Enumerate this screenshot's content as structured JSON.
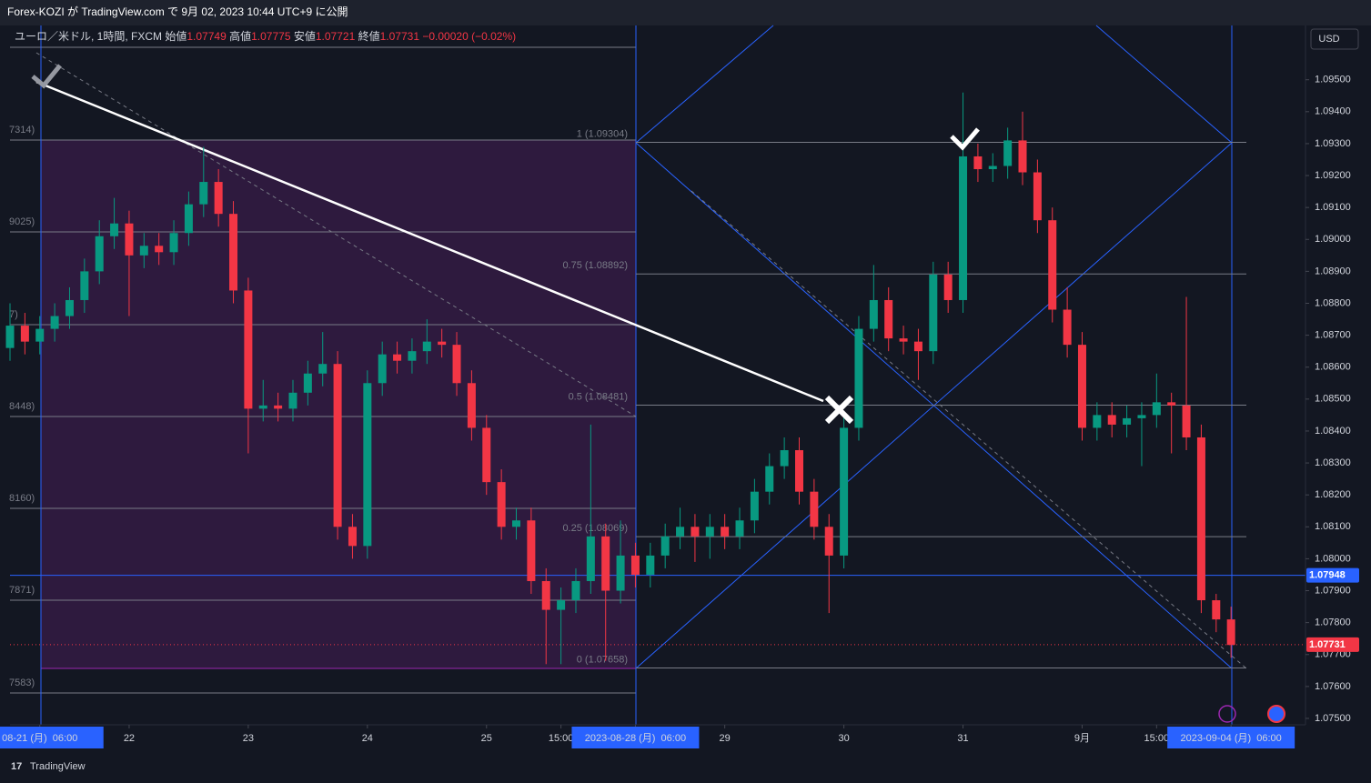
{
  "header": {
    "title": "Forex-KOZI が TradingView.com で 9月 02, 2023 10:44 UTC+9 に公開"
  },
  "legend": {
    "symbol": "ユーロ／米ドル, 1時間, FXCM",
    "items": [
      {
        "key": "始値",
        "value": "1.07749"
      },
      {
        "key": "高値",
        "value": "1.07775"
      },
      {
        "key": "安値",
        "value": "1.07721"
      },
      {
        "key": "終値",
        "value": "1.07731"
      }
    ],
    "change": "−0.00020 (−0.02%)"
  },
  "currency_button": "USD",
  "footer": {
    "brand": "TradingView"
  },
  "left_fib_labels": [
    "7314)",
    "9025)",
    "7)",
    "8448)",
    "8160)",
    "7871)",
    "7583)"
  ],
  "chart_data": {
    "type": "candlestick",
    "up_color": "#089981",
    "down_color": "#f23645",
    "xlim": [
      0,
      261
    ],
    "ylim": [
      1.0748,
      1.0967
    ],
    "xticks": [
      {
        "value": 6,
        "label": "08-21 (月)  06:00",
        "highlight": true
      },
      {
        "value": 24,
        "label": "22"
      },
      {
        "value": 48,
        "label": "23"
      },
      {
        "value": 72,
        "label": "24"
      },
      {
        "value": 96,
        "label": "25"
      },
      {
        "value": 111,
        "label": "15:00"
      },
      {
        "value": 126,
        "label": "2023-08-28 (月)  06:00",
        "highlight": true
      },
      {
        "value": 144,
        "label": "29"
      },
      {
        "value": 168,
        "label": "30"
      },
      {
        "value": 192,
        "label": "31"
      },
      {
        "value": 216,
        "label": "9月"
      },
      {
        "value": 231,
        "label": "15:00"
      },
      {
        "value": 246,
        "label": "2023-09-04 (月)  06:00",
        "highlight": true
      }
    ],
    "yticks": [
      {
        "value": 1.075,
        "label": "1.07500"
      },
      {
        "value": 1.076,
        "label": "1.07600"
      },
      {
        "value": 1.077,
        "label": "1.07700"
      },
      {
        "value": 1.078,
        "label": "1.07800"
      },
      {
        "value": 1.079,
        "label": "1.07900"
      },
      {
        "value": 1.08,
        "label": "1.08000"
      },
      {
        "value": 1.081,
        "label": "1.08100"
      },
      {
        "value": 1.082,
        "label": "1.08200"
      },
      {
        "value": 1.083,
        "label": "1.08300"
      },
      {
        "value": 1.084,
        "label": "1.08400"
      },
      {
        "value": 1.085,
        "label": "1.08500"
      },
      {
        "value": 1.086,
        "label": "1.08600"
      },
      {
        "value": 1.087,
        "label": "1.08700"
      },
      {
        "value": 1.088,
        "label": "1.08800"
      },
      {
        "value": 1.089,
        "label": "1.08900"
      },
      {
        "value": 1.09,
        "label": "1.09000"
      },
      {
        "value": 1.091,
        "label": "1.09100"
      },
      {
        "value": 1.092,
        "label": "1.09200"
      },
      {
        "value": 1.093,
        "label": "1.09300"
      },
      {
        "value": 1.094,
        "label": "1.09400"
      },
      {
        "value": 1.095,
        "label": "1.09500"
      }
    ],
    "fib_levels": [
      {
        "value": 1.09304,
        "label": "1 (1.09304)"
      },
      {
        "value": 1.08892,
        "label": "0.75 (1.08892)"
      },
      {
        "value": 1.08481,
        "label": "0.5 (1.08481)"
      },
      {
        "value": 1.08069,
        "label": "0.25 (1.08069)"
      },
      {
        "value": 1.07658,
        "label": "0 (1.07658)"
      }
    ],
    "price_lines": [
      {
        "value": 1.07948,
        "label": "1.07948",
        "color": "#2962ff"
      },
      {
        "value": 1.07731,
        "label": "1.07731",
        "color": "#f23645"
      }
    ],
    "x": [
      0,
      3,
      6,
      9,
      12,
      15,
      18,
      21,
      24,
      27,
      30,
      33,
      36,
      39,
      42,
      45,
      48,
      51,
      54,
      57,
      60,
      63,
      66,
      69,
      72,
      75,
      78,
      81,
      84,
      87,
      90,
      93,
      96,
      99,
      102,
      105,
      108,
      111,
      114,
      117,
      120,
      123,
      126,
      129,
      132,
      135,
      138,
      141,
      144,
      147,
      150,
      153,
      156,
      159,
      162,
      165,
      168,
      171,
      174,
      177,
      180,
      183,
      186,
      189,
      192,
      195,
      198,
      201,
      204,
      207,
      210,
      213,
      216,
      219,
      222,
      225,
      228,
      231,
      234,
      237,
      240,
      243,
      246
    ],
    "open": [
      1.0866,
      1.0873,
      1.0868,
      1.0872,
      1.0876,
      1.0881,
      1.089,
      1.0901,
      1.0905,
      1.0895,
      1.0898,
      1.0896,
      1.0902,
      1.0911,
      1.0918,
      1.0908,
      1.0884,
      1.0847,
      1.0848,
      1.0847,
      1.0852,
      1.0858,
      1.0861,
      1.081,
      1.0804,
      1.0855,
      1.0864,
      1.0862,
      1.0865,
      1.0868,
      1.0867,
      1.0855,
      1.0841,
      1.0824,
      1.081,
      1.0812,
      1.0793,
      1.0784,
      1.0787,
      1.0793,
      1.0807,
      1.079,
      1.0801,
      1.0795,
      1.0801,
      1.0807,
      1.081,
      1.0807,
      1.081,
      1.0807,
      1.0812,
      1.0821,
      1.0829,
      1.0834,
      1.0821,
      1.081,
      1.0801,
      1.0841,
      1.0872,
      1.0881,
      1.0869,
      1.0868,
      1.0865,
      1.0889,
      1.0881,
      1.0926,
      1.0922,
      1.0923,
      1.0931,
      1.0921,
      1.0906,
      1.0878,
      1.0867,
      1.0841,
      1.0845,
      1.0842,
      1.0844,
      1.0845,
      1.0849,
      1.0848,
      1.0838,
      1.0787,
      1.0781
    ],
    "high": [
      1.088,
      1.0877,
      1.0876,
      1.088,
      1.0885,
      1.0894,
      1.0906,
      1.0913,
      1.0909,
      1.0902,
      1.0902,
      1.0906,
      1.0915,
      1.0929,
      1.0922,
      1.0912,
      1.0888,
      1.0856,
      1.0852,
      1.0856,
      1.0862,
      1.0871,
      1.0865,
      1.0814,
      1.0859,
      1.0868,
      1.0868,
      1.0869,
      1.0875,
      1.0872,
      1.0871,
      1.0859,
      1.0845,
      1.0828,
      1.0816,
      1.0816,
      1.0797,
      1.0791,
      1.0797,
      1.0842,
      1.0811,
      1.0812,
      1.0805,
      1.0805,
      1.0811,
      1.0816,
      1.0814,
      1.0814,
      1.0814,
      1.0816,
      1.0825,
      1.0833,
      1.0838,
      1.0838,
      1.0825,
      1.0814,
      1.0845,
      1.0876,
      1.0892,
      1.0885,
      1.0873,
      1.0872,
      1.0893,
      1.0893,
      1.0946,
      1.093,
      1.0927,
      1.0935,
      1.094,
      1.0925,
      1.091,
      1.0885,
      1.0871,
      1.0849,
      1.0849,
      1.0848,
      1.0849,
      1.0858,
      1.0852,
      1.0882,
      1.0842,
      1.0789,
      1.0785
    ],
    "low": [
      1.0862,
      1.0864,
      1.0864,
      1.0868,
      1.0872,
      1.0877,
      1.0886,
      1.0897,
      1.0876,
      1.0891,
      1.0892,
      1.0892,
      1.0898,
      1.0907,
      1.0904,
      1.088,
      1.0833,
      1.0843,
      1.0843,
      1.0843,
      1.0848,
      1.0854,
      1.0806,
      1.08,
      1.08,
      1.0851,
      1.0858,
      1.0858,
      1.0861,
      1.0863,
      1.0851,
      1.0837,
      1.082,
      1.0806,
      1.0806,
      1.0789,
      1.0767,
      1.0767,
      1.0783,
      1.0789,
      1.0768,
      1.0786,
      1.0791,
      1.0791,
      1.0797,
      1.0803,
      1.0799,
      1.08,
      1.0803,
      1.0803,
      1.0808,
      1.0817,
      1.0825,
      1.0817,
      1.0806,
      1.0783,
      1.0797,
      1.0837,
      1.0868,
      1.0865,
      1.0864,
      1.0856,
      1.0861,
      1.0877,
      1.0877,
      1.0918,
      1.0918,
      1.0919,
      1.0917,
      1.0902,
      1.0874,
      1.0863,
      1.0837,
      1.0837,
      1.0838,
      1.0838,
      1.0829,
      1.0841,
      1.0833,
      1.0834,
      1.0783,
      1.0777,
      1.0769
    ],
    "close": [
      1.0873,
      1.0868,
      1.0872,
      1.0876,
      1.0881,
      1.089,
      1.0901,
      1.0905,
      1.0895,
      1.0898,
      1.0896,
      1.0902,
      1.0911,
      1.0918,
      1.0908,
      1.0884,
      1.0847,
      1.0848,
      1.0847,
      1.0852,
      1.0858,
      1.0861,
      1.081,
      1.0804,
      1.0855,
      1.0864,
      1.0862,
      1.0865,
      1.0868,
      1.0867,
      1.0855,
      1.0841,
      1.0824,
      1.081,
      1.0812,
      1.0793,
      1.0784,
      1.0787,
      1.0793,
      1.0807,
      1.079,
      1.0801,
      1.0795,
      1.0801,
      1.0807,
      1.081,
      1.0807,
      1.081,
      1.0807,
      1.0812,
      1.0821,
      1.0829,
      1.0834,
      1.0821,
      1.081,
      1.0801,
      1.0841,
      1.0872,
      1.0881,
      1.0869,
      1.0868,
      1.0865,
      1.0889,
      1.0881,
      1.0926,
      1.0922,
      1.0923,
      1.0931,
      1.0921,
      1.0906,
      1.0878,
      1.0867,
      1.0841,
      1.0845,
      1.0842,
      1.0844,
      1.0845,
      1.0849,
      1.0848,
      1.0838,
      1.0787,
      1.0781,
      1.0773
    ]
  }
}
